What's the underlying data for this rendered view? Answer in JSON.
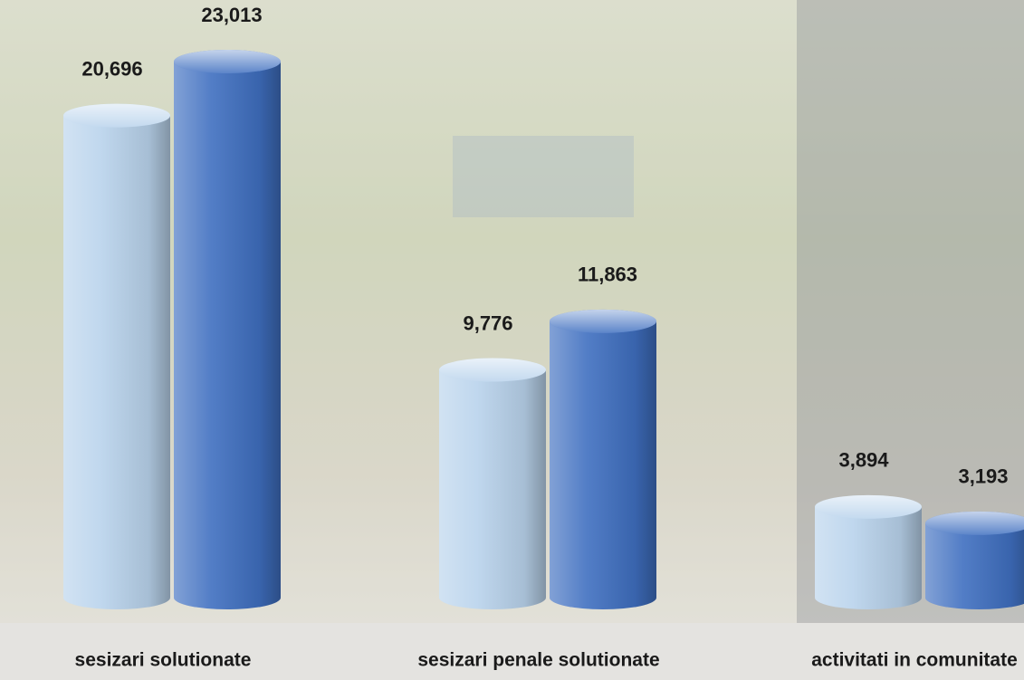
{
  "chart_data": {
    "type": "cylinder-bar",
    "categories": [
      "sesizari solutionate",
      "sesizari penale solutionate",
      "activitati in comunitate"
    ],
    "series": [
      {
        "color": "#b9d3ec",
        "values": [
          20696,
          9776,
          3894
        ],
        "value_labels": [
          "20,696",
          "9,776",
          "3,894"
        ]
      },
      {
        "color": "#3f6fc0",
        "values": [
          23013,
          11863,
          3193
        ],
        "value_labels": [
          "23,013",
          "11,863",
          "3,193"
        ]
      }
    ]
  }
}
